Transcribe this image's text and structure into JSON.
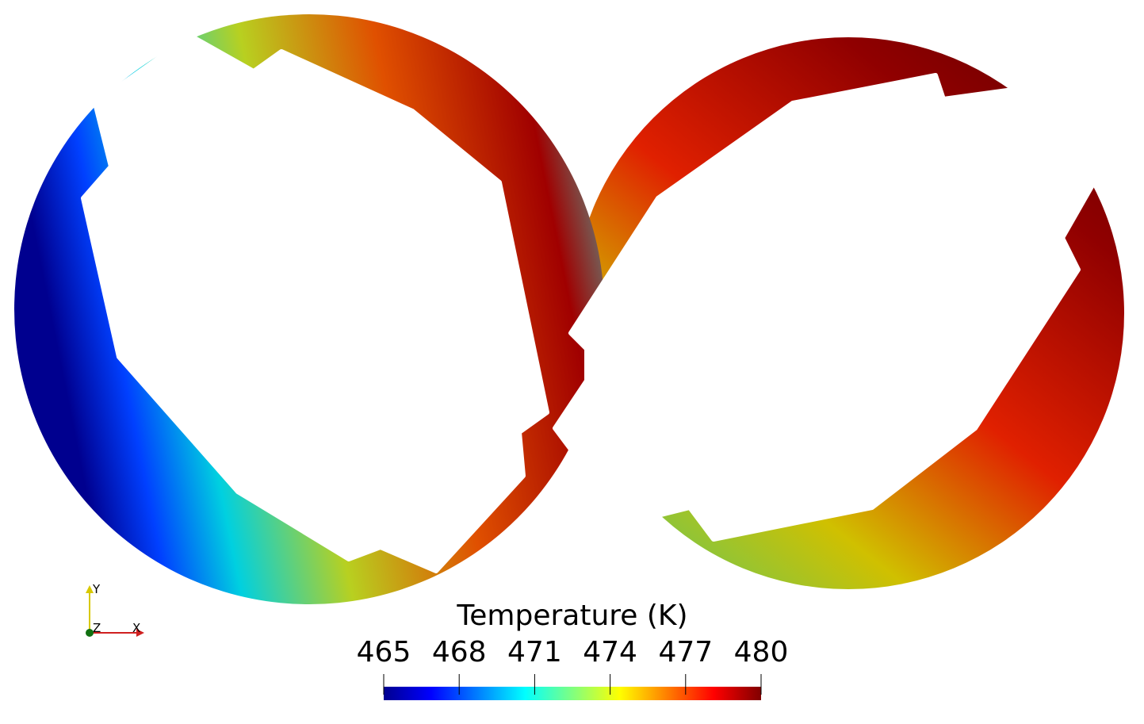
{
  "colorbar": {
    "title": "Temperature (K)",
    "range": [
      465,
      480
    ],
    "ticks": [
      465,
      468,
      471,
      474,
      477,
      480
    ]
  },
  "axes": {
    "y": "Y",
    "z": "Z",
    "x": "X"
  }
}
